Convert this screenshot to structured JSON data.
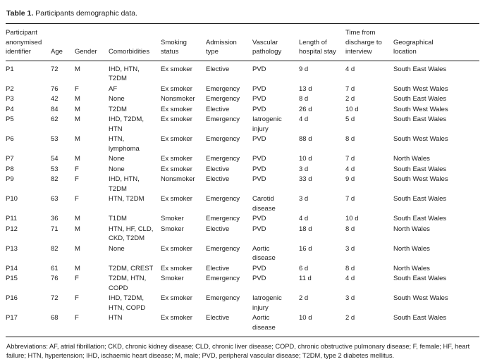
{
  "colors": {
    "text": "#1c1c1c",
    "rule": "#1a1a1a",
    "background": "#ffffff"
  },
  "caption": {
    "label": "Table 1.",
    "text": "Participants demographic data."
  },
  "table": {
    "columns": [
      "Participant anonymised identifier",
      "Age",
      "Gender",
      "Comorbidities",
      "Smoking status",
      "Admission type",
      "Vascular pathology",
      "Length of hospital stay",
      "Time from discharge to interview",
      "Geographical location"
    ],
    "rows": [
      [
        "P1",
        "72",
        "M",
        "IHD, HTN, T2DM",
        "Ex smoker",
        "Elective",
        "PVD",
        "9 d",
        "4 d",
        "South East Wales"
      ],
      [
        "P2",
        "76",
        "F",
        "AF",
        "Ex smoker",
        "Emergency",
        "PVD",
        "13 d",
        "7 d",
        "South West Wales"
      ],
      [
        "P3",
        "42",
        "M",
        "None",
        "Nonsmoker",
        "Emergency",
        "PVD",
        "8 d",
        "2 d",
        "South East Wales"
      ],
      [
        "P4",
        "84",
        "M",
        "T2DM",
        "Ex smoker",
        "Elective",
        "PVD",
        "26 d",
        "10 d",
        "South West Wales"
      ],
      [
        "P5",
        "62",
        "M",
        "IHD, T2DM, HTN",
        "Ex smoker",
        "Emergency",
        "Iatrogenic injury",
        "4 d",
        "5 d",
        "South East Wales"
      ],
      [
        "P6",
        "53",
        "M",
        "HTN, lymphoma",
        "Ex smoker",
        "Emergency",
        "PVD",
        "88 d",
        "8 d",
        "South West Wales"
      ],
      [
        "P7",
        "54",
        "M",
        "None",
        "Ex smoker",
        "Emergency",
        "PVD",
        "10 d",
        "7 d",
        "North Wales"
      ],
      [
        "P8",
        "53",
        "F",
        "None",
        "Ex smoker",
        "Elective",
        "PVD",
        "3 d",
        "4 d",
        "South East Wales"
      ],
      [
        "P9",
        "82",
        "F",
        "IHD, HTN, T2DM",
        "Nonsmoker",
        "Elective",
        "PVD",
        "33 d",
        "9 d",
        "South West Wales"
      ],
      [
        "P10",
        "63",
        "F",
        "HTN, T2DM",
        "Ex smoker",
        "Emergency",
        "Carotid disease",
        "3 d",
        "7 d",
        "South East Wales"
      ],
      [
        "P11",
        "36",
        "M",
        "T1DM",
        "Smoker",
        "Emergency",
        "PVD",
        "4 d",
        "10 d",
        "South East Wales"
      ],
      [
        "P12",
        "71",
        "M",
        "HTN, HF, CLD, CKD, T2DM",
        "Smoker",
        "Elective",
        "PVD",
        "18 d",
        "8 d",
        "North Wales"
      ],
      [
        "P13",
        "82",
        "M",
        "None",
        "Ex smoker",
        "Emergency",
        "Aortic disease",
        "16 d",
        "3 d",
        "North Wales"
      ],
      [
        "P14",
        "61",
        "M",
        "T2DM, CREST",
        "Ex smoker",
        "Elective",
        "PVD",
        "6 d",
        "8 d",
        "North Wales"
      ],
      [
        "P15",
        "76",
        "F",
        "T2DM, HTN, COPD",
        "Smoker",
        "Emergency",
        "PVD",
        "11 d",
        "4 d",
        "South East Wales"
      ],
      [
        "P16",
        "72",
        "F",
        "IHD, T2DM, HTN, COPD",
        "Ex smoker",
        "Emergency",
        "Iatrogenic injury",
        "2 d",
        "3 d",
        "South West Wales"
      ],
      [
        "P17",
        "68",
        "F",
        "HTN",
        "Ex smoker",
        "Elective",
        "Aortic disease",
        "10 d",
        "2 d",
        "South East Wales"
      ]
    ]
  },
  "footnote": "Abbreviations: AF, atrial fibrillation; CKD, chronic kidney disease; CLD, chronic liver disease; COPD, chronic obstructive pulmonary disease; F, female; HF, heart failure; HTN, hypertension; IHD, ischaemic heart disease; M, male; PVD, peripheral vascular disease; T2DM, type 2 diabetes mellitus."
}
